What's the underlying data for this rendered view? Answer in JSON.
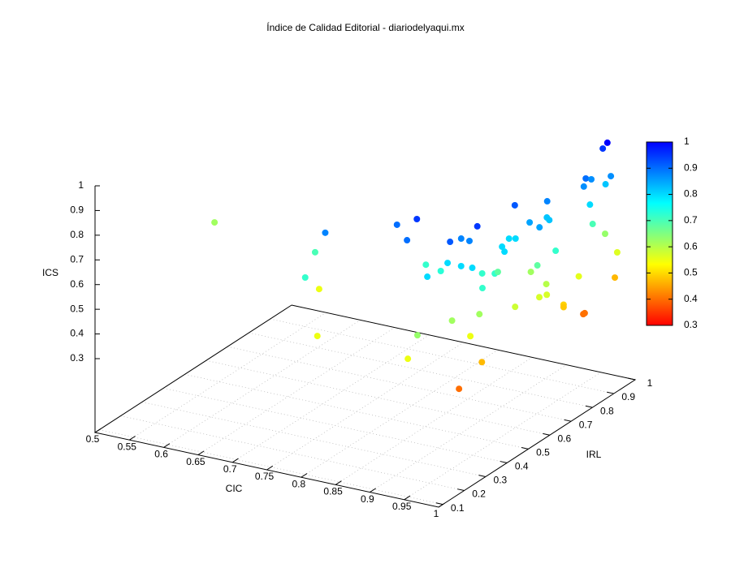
{
  "chart_data": {
    "type": "scatter3d",
    "title": "Índice de Calidad Editorial - diariodelyaqui.mx",
    "xlabel": "CIC",
    "ylabel": "IRL",
    "zlabel": "ICS",
    "x": [
      0.534,
      0.78,
      0.727,
      0.767,
      0.731,
      0.808,
      0.853,
      0.886,
      0.89,
      0.877,
      0.932,
      0.908,
      0.931,
      0.948,
      0.938,
      0.951,
      0.964,
      0.951,
      0.966,
      0.953,
      0.978,
      0.967,
      0.951,
      0.963,
      0.974,
      0.957,
      0.964,
      0.957,
      0.973,
      0.992,
      0.971,
      0.978,
      0.969,
      0.995,
      0.983,
      0.962,
      0.993,
      0.997,
      0.991,
      0.987,
      0.977,
      0.958,
      0.949,
      0.975,
      0.945,
      0.998,
      0.989,
      1,
      1,
      0.996,
      1,
      1,
      1,
      1,
      0.983,
      0.982,
      0.988,
      0.979,
      0.992,
      0.98,
      0.981,
      0.976,
      0.97,
      0.986
    ],
    "y": [
      0.53,
      0.257,
      0.38,
      0.205,
      0.386,
      0.13,
      0.358,
      0.345,
      0.286,
      0.416,
      0.246,
      0.386,
      0.344,
      0.301,
      0.385,
      0.382,
      0.377,
      0.343,
      0.347,
      0.435,
      0.356,
      0.449,
      0.515,
      0.496,
      0.472,
      0.548,
      0.556,
      0.575,
      0.593,
      0.578,
      0.68,
      0.669,
      0.688,
      0.644,
      0.597,
      0.634,
      0.574,
      0.596,
      0.613,
      0.48,
      0.345,
      0.278,
      0.145,
      0.309,
      0.113,
      0.289,
      0.211,
      0.665,
      0.665,
      0.749,
      0.757,
      0.764,
      0.905,
      0.916,
      0.914,
      0.859,
      0.827,
      0.929,
      0.912,
      0.824,
      0.83,
      0.872,
      0.945,
      0.915
    ],
    "z": [
      0.62,
      0.88,
      0.7,
      0.72,
      0.55,
      0.55,
      0.9,
      0.95,
      0.9,
      0.72,
      0.8,
      0.73,
      0.8,
      0.92,
      0.88,
      0.88,
      0.95,
      0.8,
      0.8,
      0.72,
      0.72,
      0.72,
      0.68,
      0.8,
      0.8,
      0.8,
      0.8,
      0.92,
      0.85,
      0.85,
      0.82,
      0.82,
      0.88,
      0.72,
      0.68,
      0.62,
      0.57,
      0.57,
      0.6,
      0.58,
      0.62,
      0.62,
      0.63,
      0.55,
      0.55,
      0.47,
      0.4,
      0.493,
      0.483,
      0.558,
      0.403,
      0.403,
      0.468,
      0.564,
      0.63,
      0.7,
      0.8,
      0.82,
      0.87,
      0.87,
      0.9,
      0.87,
      0.95,
      1
    ],
    "xlim": [
      0.5,
      1
    ],
    "ylim": [
      0.08,
      1
    ],
    "zlim": [
      0.3,
      1
    ],
    "xticks": [
      0.5,
      0.55,
      0.6,
      0.65,
      0.7,
      0.75,
      0.8,
      0.85,
      0.9,
      0.95,
      1
    ],
    "yticks": [
      0.1,
      0.2,
      0.3,
      0.4,
      0.5,
      0.6,
      0.7,
      0.8,
      0.9,
      1
    ],
    "zticks": [
      0.3,
      0.4,
      0.5,
      0.6,
      0.7,
      0.8,
      0.9,
      1
    ],
    "clim": [
      0.3,
      1
    ],
    "cticks": [
      0.3,
      0.4,
      0.5,
      0.6,
      0.7,
      0.8,
      0.9,
      1
    ],
    "palette": [
      "#ff0000",
      "#ff8000",
      "#ffff00",
      "#80ff80",
      "#00ffff",
      "#0080ff",
      "#0000ff"
    ],
    "grid": true
  }
}
